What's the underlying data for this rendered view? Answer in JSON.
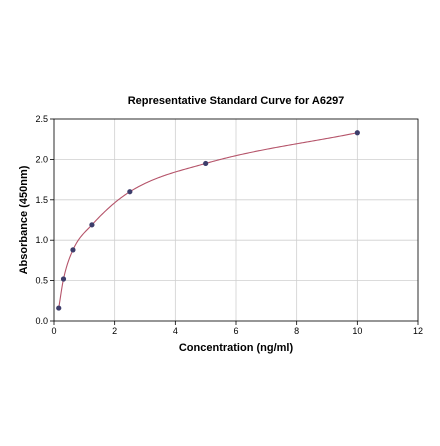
{
  "chart_data": {
    "type": "scatter",
    "title": "Representative Standard Curve for A6297",
    "xlabel": "Concentration (ng/ml)",
    "ylabel": "Absorbance (450nm)",
    "xlim": [
      0,
      12
    ],
    "ylim": [
      0,
      2.5
    ],
    "x_ticks": [
      "0",
      "2",
      "4",
      "6",
      "8",
      "10",
      "12"
    ],
    "y_ticks": [
      "0.0",
      "0.5",
      "1.0",
      "1.5",
      "2.0",
      "2.5"
    ],
    "grid": true,
    "series": [
      {
        "points": [
          {
            "x": 0.156,
            "y": 0.16
          },
          {
            "x": 0.313,
            "y": 0.52
          },
          {
            "x": 0.625,
            "y": 0.88
          },
          {
            "x": 1.25,
            "y": 1.19
          },
          {
            "x": 2.5,
            "y": 1.6
          },
          {
            "x": 5,
            "y": 1.95
          },
          {
            "x": 10,
            "y": 2.33
          }
        ],
        "marker_color": "#3d3d6b",
        "fit_line_color": "#b5546a"
      }
    ]
  }
}
